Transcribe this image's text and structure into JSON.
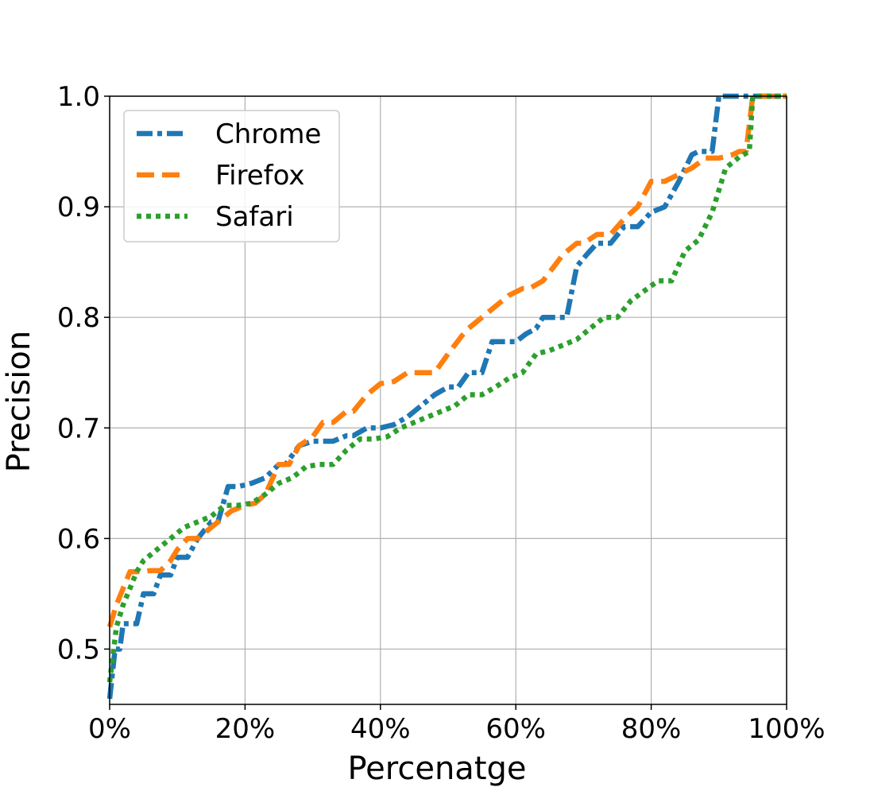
{
  "chart_data": {
    "type": "line",
    "xlabel": "Percenatge",
    "ylabel": "Precision",
    "xlim": [
      0,
      100
    ],
    "ylim": [
      0.45,
      1.0
    ],
    "x_ticks": [
      0,
      20,
      40,
      60,
      80,
      100
    ],
    "x_tick_labels": [
      "0%",
      "20%",
      "40%",
      "60%",
      "80%",
      "100%"
    ],
    "y_ticks": [
      0.5,
      0.6,
      0.7,
      0.8,
      0.9,
      1.0
    ],
    "y_tick_labels": [
      "0.5",
      "0.6",
      "0.7",
      "0.8",
      "0.9",
      "1.0"
    ],
    "grid": true,
    "legend_position": "top-left",
    "series": [
      {
        "name": "Chrome",
        "color": "#1f77b4",
        "style": "dashdot",
        "x": [
          0,
          0.8,
          1.5,
          2,
          4,
          5,
          6.5,
          7.5,
          9,
          10,
          11.5,
          13,
          15,
          16,
          17.5,
          19,
          21,
          23,
          25,
          26,
          28,
          30,
          33,
          35,
          36,
          38,
          40,
          42,
          44,
          46,
          48,
          50,
          51.5,
          53,
          55,
          56.5,
          58.5,
          60,
          61.5,
          63,
          64,
          65,
          66,
          67.5,
          69,
          70.5,
          72,
          74,
          76,
          78,
          80,
          82,
          84,
          86,
          87,
          88,
          89,
          90,
          92,
          95,
          100
        ],
        "y": [
          0.455,
          0.5,
          0.5,
          0.523,
          0.523,
          0.55,
          0.55,
          0.567,
          0.567,
          0.583,
          0.583,
          0.6,
          0.615,
          0.615,
          0.647,
          0.647,
          0.65,
          0.655,
          0.667,
          0.667,
          0.684,
          0.688,
          0.688,
          0.693,
          0.693,
          0.7,
          0.7,
          0.703,
          0.71,
          0.72,
          0.73,
          0.737,
          0.737,
          0.75,
          0.75,
          0.778,
          0.778,
          0.778,
          0.785,
          0.79,
          0.8,
          0.8,
          0.8,
          0.8,
          0.846,
          0.857,
          0.867,
          0.867,
          0.882,
          0.882,
          0.895,
          0.9,
          0.922,
          0.947,
          0.95,
          0.95,
          0.95,
          1.0,
          1.0,
          1.0,
          1.0
        ]
      },
      {
        "name": "Firefox",
        "color": "#ff7f0e",
        "style": "dashed",
        "x": [
          0,
          1,
          2,
          3,
          5,
          6,
          7.5,
          9,
          10,
          11.5,
          13,
          15,
          16,
          18,
          20,
          21.5,
          23,
          25,
          26.5,
          28,
          30,
          31.5,
          33,
          35,
          36,
          38,
          40,
          42,
          44,
          46,
          48,
          50,
          52,
          53,
          55,
          57,
          59,
          61,
          62,
          64,
          65.5,
          67,
          69,
          70,
          72,
          74,
          76,
          78,
          80,
          82,
          84,
          86,
          88,
          90,
          92,
          93,
          94,
          95,
          100
        ],
        "y": [
          0.52,
          0.54,
          0.555,
          0.57,
          0.57,
          0.571,
          0.571,
          0.58,
          0.59,
          0.6,
          0.6,
          0.61,
          0.615,
          0.625,
          0.63,
          0.632,
          0.64,
          0.667,
          0.667,
          0.684,
          0.692,
          0.705,
          0.705,
          0.715,
          0.715,
          0.73,
          0.74,
          0.742,
          0.75,
          0.75,
          0.75,
          0.767,
          0.783,
          0.79,
          0.8,
          0.81,
          0.82,
          0.826,
          0.826,
          0.833,
          0.845,
          0.857,
          0.867,
          0.867,
          0.875,
          0.875,
          0.889,
          0.9,
          0.923,
          0.923,
          0.929,
          0.935,
          0.944,
          0.944,
          0.947,
          0.95,
          0.95,
          1.0,
          1.0
        ]
      },
      {
        "name": "Safari",
        "color": "#2ca02c",
        "style": "dotted",
        "x": [
          0,
          1,
          2,
          3,
          4,
          5,
          7,
          9,
          11,
          13,
          15,
          17,
          19,
          21,
          23,
          25,
          27,
          29,
          31,
          33,
          35,
          37,
          39,
          41,
          43,
          45,
          47,
          49,
          51,
          53,
          55,
          57,
          59,
          61,
          63,
          65,
          67,
          69,
          71,
          73,
          75,
          77,
          79,
          81,
          83,
          85,
          87,
          89,
          91,
          93,
          94.5,
          95,
          100
        ],
        "y": [
          0.47,
          0.52,
          0.54,
          0.555,
          0.57,
          0.58,
          0.59,
          0.6,
          0.61,
          0.615,
          0.62,
          0.63,
          0.63,
          0.632,
          0.64,
          0.65,
          0.655,
          0.665,
          0.667,
          0.667,
          0.68,
          0.69,
          0.69,
          0.692,
          0.7,
          0.705,
          0.71,
          0.715,
          0.72,
          0.73,
          0.73,
          0.737,
          0.745,
          0.75,
          0.767,
          0.77,
          0.775,
          0.78,
          0.79,
          0.8,
          0.8,
          0.815,
          0.824,
          0.833,
          0.833,
          0.86,
          0.87,
          0.895,
          0.935,
          0.945,
          0.95,
          1.0,
          1.0
        ]
      }
    ]
  }
}
